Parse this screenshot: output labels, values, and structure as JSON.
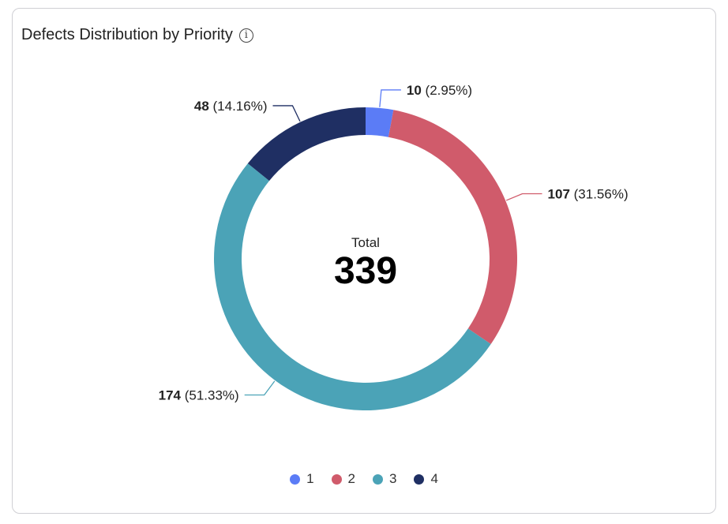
{
  "chart_data": {
    "type": "pie",
    "variant": "donut",
    "title": "Defects Distribution by Priority",
    "categories": [
      "1",
      "2",
      "3",
      "4"
    ],
    "values": [
      10,
      107,
      174,
      48
    ],
    "percent_labels": [
      "2.95%",
      "31.56%",
      "51.33%",
      "14.16%"
    ],
    "colors": [
      "#5B7CF6",
      "#D05B6B",
      "#4BA3B7",
      "#1F2F63"
    ],
    "center_label": "Total",
    "center_value": "339",
    "legend_position": "bottom"
  },
  "info_icon": "info-icon"
}
